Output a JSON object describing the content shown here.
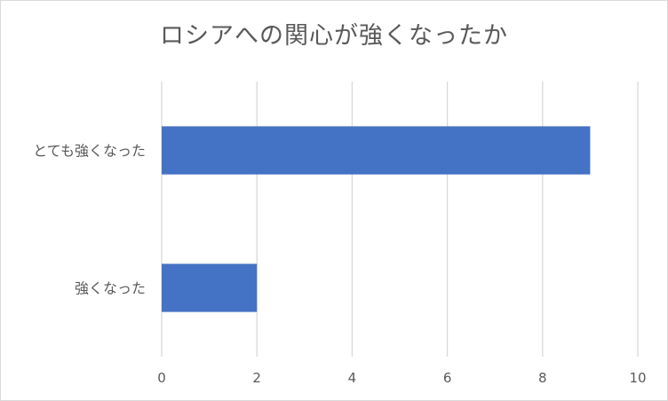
{
  "chart_data": {
    "type": "bar",
    "orientation": "horizontal",
    "title": "ロシアへの関心が強くなったか",
    "categories": [
      "とても強くなった",
      "強くなった"
    ],
    "values": [
      9,
      2
    ],
    "xlim": [
      0,
      10
    ],
    "x_ticks": [
      "0",
      "2",
      "4",
      "6",
      "8",
      "10"
    ],
    "grid": true,
    "legend": "none",
    "bar_color": "#4472c4"
  }
}
